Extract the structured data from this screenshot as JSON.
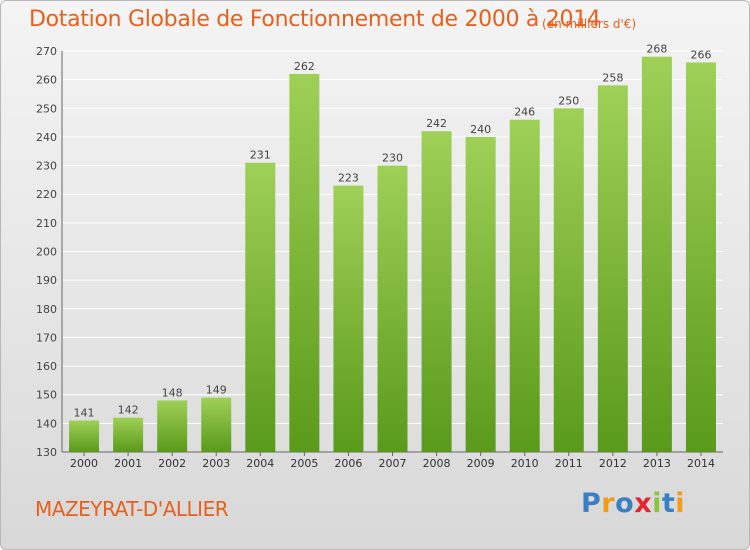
{
  "title": "Dotation Globale de Fonctionnement de 2000 à 2014",
  "unit_note": "(en milliers d'€)",
  "place": "MAZEYRAT-D'ALLIER",
  "logo": {
    "text": "Proxiti",
    "letters": [
      "P",
      "r",
      "o",
      "x",
      "i",
      "t",
      "i"
    ],
    "colors": [
      "#3a7fc4",
      "#f39c1a",
      "#3a7fc4",
      "#e2262b",
      "#8cc43c",
      "#3a7fc4",
      "#f39c1a"
    ]
  },
  "colors": {
    "bar_light": "#9fd057",
    "bar_dark": "#5a9a1a",
    "text_accent": "#e8601c",
    "grid": "#ffffff"
  },
  "chart_data": {
    "type": "bar",
    "categories": [
      "2000",
      "2001",
      "2002",
      "2003",
      "2004",
      "2005",
      "2006",
      "2007",
      "2008",
      "2009",
      "2010",
      "2011",
      "2012",
      "2013",
      "2014"
    ],
    "values": [
      141,
      142,
      148,
      149,
      231,
      262,
      223,
      230,
      242,
      240,
      246,
      250,
      258,
      268,
      266
    ],
    "value_labels": [
      "141",
      "142",
      "148",
      "149",
      "231",
      "262",
      "223",
      "230",
      "242",
      "240",
      "246",
      "250",
      "258",
      "268",
      "266"
    ],
    "yticks": [
      "130",
      "140",
      "150",
      "160",
      "170",
      "180",
      "190",
      "200",
      "210",
      "220",
      "230",
      "240",
      "250",
      "260",
      "270"
    ],
    "ylim": [
      130,
      270
    ],
    "grid": true,
    "title": "Dotation Globale de Fonctionnement de 2000 à 2014",
    "xlabel": "",
    "ylabel": ""
  }
}
